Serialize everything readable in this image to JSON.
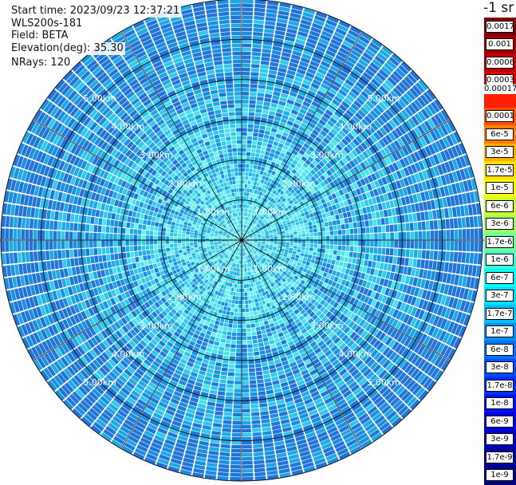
{
  "info": {
    "start_time": "Start time: 2023/09/23 12:37:21",
    "instrument": "WLS200s-181",
    "field": "Field: BETA",
    "elevation": "Elevation(deg): 35.30",
    "nrays": "NRays: 120"
  },
  "chart_data": {
    "type": "heatmap",
    "projection": "polar-ppi",
    "field": "BETA",
    "elevation_deg": 35.3,
    "n_rays": 120,
    "max_range_km": 6,
    "range_rings_km": [
      1,
      2,
      3,
      4,
      5
    ],
    "ring_labels": [
      "1.00km",
      "2.00km",
      "3.00km",
      "4.00km",
      "5.00km"
    ],
    "azimuth_spokes_deg": [
      0,
      30,
      60,
      90,
      120,
      150,
      180,
      210,
      240,
      270,
      300,
      330
    ],
    "colorbar": {
      "unit_label": "-1 sr",
      "labels": [
        "0.0017",
        "0.001",
        "0.0006",
        "0.0003",
        "0.00017",
        "0.0001",
        "6e-5",
        "3e-5",
        "1.7e-5",
        "1e-5",
        "6e-6",
        "3e-6",
        "1.7e-6",
        "1e-6",
        "6e-7",
        "3e-7",
        "1.7e-7",
        "1e-7",
        "6e-8",
        "3e-8",
        "1.7e-8",
        "1e-8",
        "6e-9",
        "3e-9",
        "1.7e-9",
        "1e-9"
      ],
      "colors": [
        "#800000",
        "#a00000",
        "#c00000",
        "#e00000",
        "#ff2000",
        "#ff5000",
        "#ff8000",
        "#ffb000",
        "#ffe000",
        "#ffff00",
        "#d0ff30",
        "#a0ff60",
        "#70ffa0",
        "#40ffd0",
        "#00ffff",
        "#00e0ff",
        "#00c0ff",
        "#0090ff",
        "#0070ff",
        "#0050ff",
        "#0030ff",
        "#0010ff",
        "#0000e0",
        "#0000c0",
        "#0000a0",
        "#000080"
      ]
    }
  }
}
